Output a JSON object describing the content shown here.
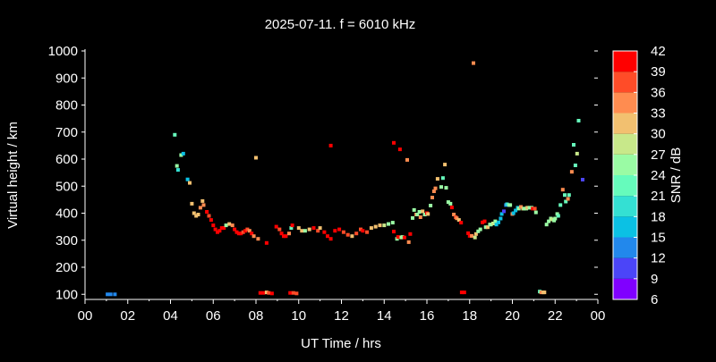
{
  "chart_data": {
    "type": "scatter",
    "title": "2025-07-11. f = 6010 kHz",
    "xlabel": "UT Time / hrs",
    "ylabel": "Virtual height / km",
    "xlim": [
      0,
      24
    ],
    "ylim": [
      80,
      1000
    ],
    "xticks": [
      "00",
      "02",
      "04",
      "06",
      "08",
      "10",
      "12",
      "14",
      "16",
      "18",
      "20",
      "22",
      "00"
    ],
    "yticks": [
      100,
      200,
      300,
      400,
      500,
      600,
      700,
      800,
      900,
      1000
    ],
    "colorbar": {
      "label": "SNR / dB",
      "ticks": [
        6,
        9,
        12,
        15,
        18,
        21,
        24,
        27,
        30,
        33,
        36,
        39,
        42
      ],
      "colors": [
        "#8000ff",
        "#4b45f8",
        "#2288ec",
        "#0bc1e4",
        "#34e0d3",
        "#66fbbc",
        "#9afba4",
        "#c8e88a",
        "#f2c070",
        "#ff8c50",
        "#ff4c28",
        "#ff0000"
      ]
    },
    "grid": false,
    "points": [
      [
        1.05,
        100,
        14
      ],
      [
        1.2,
        100,
        14
      ],
      [
        1.4,
        100,
        14
      ],
      [
        4.2,
        690,
        23
      ],
      [
        4.3,
        575,
        26
      ],
      [
        4.35,
        560,
        20
      ],
      [
        4.5,
        615,
        26
      ],
      [
        4.6,
        620,
        17
      ],
      [
        4.8,
        525,
        17
      ],
      [
        4.9,
        512,
        32
      ],
      [
        5.0,
        435,
        32
      ],
      [
        5.1,
        400,
        32
      ],
      [
        5.2,
        390,
        32
      ],
      [
        5.3,
        395,
        32
      ],
      [
        5.4,
        420,
        35
      ],
      [
        5.5,
        445,
        32
      ],
      [
        5.55,
        430,
        35
      ],
      [
        5.7,
        405,
        41
      ],
      [
        5.8,
        390,
        38
      ],
      [
        5.9,
        375,
        41
      ],
      [
        6.0,
        355,
        41
      ],
      [
        6.1,
        340,
        41
      ],
      [
        6.2,
        330,
        41
      ],
      [
        6.3,
        335,
        41
      ],
      [
        6.4,
        345,
        41
      ],
      [
        6.5,
        345,
        41
      ],
      [
        6.6,
        355,
        26
      ],
      [
        6.75,
        360,
        32
      ],
      [
        6.9,
        355,
        35
      ],
      [
        7.0,
        340,
        41
      ],
      [
        7.1,
        330,
        41
      ],
      [
        7.2,
        325,
        41
      ],
      [
        7.3,
        325,
        41
      ],
      [
        7.4,
        330,
        38
      ],
      [
        7.5,
        335,
        41
      ],
      [
        7.6,
        340,
        38
      ],
      [
        7.7,
        335,
        35
      ],
      [
        7.8,
        325,
        41
      ],
      [
        7.9,
        315,
        35
      ],
      [
        8.1,
        305,
        35
      ],
      [
        8.5,
        290,
        41
      ],
      [
        8.0,
        605,
        32
      ],
      [
        8.2,
        105,
        41
      ],
      [
        8.35,
        105,
        41
      ],
      [
        8.5,
        107,
        32
      ],
      [
        8.6,
        105,
        38
      ],
      [
        8.75,
        103,
        41
      ],
      [
        9.6,
        105,
        41
      ],
      [
        9.75,
        105,
        38
      ],
      [
        9.9,
        103,
        38
      ],
      [
        8.95,
        350,
        41
      ],
      [
        9.1,
        340,
        38
      ],
      [
        9.2,
        325,
        41
      ],
      [
        9.3,
        315,
        41
      ],
      [
        9.4,
        315,
        41
      ],
      [
        9.55,
        325,
        35
      ],
      [
        9.65,
        345,
        23
      ],
      [
        9.7,
        355,
        41
      ],
      [
        10.0,
        345,
        32
      ],
      [
        10.15,
        335,
        32
      ],
      [
        10.3,
        335,
        26
      ],
      [
        10.5,
        340,
        32
      ],
      [
        10.7,
        345,
        41
      ],
      [
        10.9,
        335,
        38
      ],
      [
        11.0,
        345,
        32
      ],
      [
        11.2,
        330,
        41
      ],
      [
        11.35,
        315,
        41
      ],
      [
        11.5,
        305,
        41
      ],
      [
        11.7,
        335,
        41
      ],
      [
        11.9,
        340,
        41
      ],
      [
        11.5,
        650,
        41
      ],
      [
        12.1,
        330,
        38
      ],
      [
        12.3,
        320,
        38
      ],
      [
        12.5,
        315,
        32
      ],
      [
        12.7,
        325,
        38
      ],
      [
        12.9,
        340,
        38
      ],
      [
        13.0,
        335,
        41
      ],
      [
        13.2,
        330,
        38
      ],
      [
        13.4,
        345,
        32
      ],
      [
        13.6,
        350,
        32
      ],
      [
        13.8,
        355,
        32
      ],
      [
        14.0,
        355,
        29
      ],
      [
        14.2,
        360,
        26
      ],
      [
        14.4,
        365,
        26
      ],
      [
        14.45,
        660,
        41
      ],
      [
        14.74,
        636,
        41
      ],
      [
        15.08,
        597,
        35
      ],
      [
        14.45,
        332,
        41
      ],
      [
        14.6,
        305,
        26
      ],
      [
        14.65,
        312,
        41
      ],
      [
        14.8,
        310,
        29
      ],
      [
        14.85,
        312,
        26
      ],
      [
        14.95,
        310,
        41
      ],
      [
        15.15,
        293,
        35
      ],
      [
        15.22,
        323,
        41
      ],
      [
        15.33,
        382,
        26
      ],
      [
        15.4,
        412,
        26
      ],
      [
        15.5,
        395,
        35
      ],
      [
        15.55,
        395,
        26
      ],
      [
        15.65,
        405,
        26
      ],
      [
        15.7,
        385,
        35
      ],
      [
        15.8,
        407,
        32
      ],
      [
        15.9,
        395,
        26
      ],
      [
        16.0,
        400,
        41
      ],
      [
        16.05,
        397,
        32
      ],
      [
        16.17,
        428,
        26
      ],
      [
        16.25,
        458,
        35
      ],
      [
        16.33,
        481,
        35
      ],
      [
        16.4,
        492,
        35
      ],
      [
        16.5,
        527,
        32
      ],
      [
        16.67,
        497,
        26
      ],
      [
        16.75,
        530,
        23
      ],
      [
        16.84,
        580,
        32
      ],
      [
        16.9,
        494,
        26
      ],
      [
        17.0,
        441,
        26
      ],
      [
        17.1,
        435,
        26
      ],
      [
        17.17,
        421,
        41
      ],
      [
        17.26,
        395,
        35
      ],
      [
        17.35,
        385,
        38
      ],
      [
        17.4,
        381,
        35
      ],
      [
        17.5,
        375,
        32
      ],
      [
        17.6,
        365,
        41
      ],
      [
        17.63,
        107,
        41
      ],
      [
        17.75,
        107,
        41
      ],
      [
        18.18,
        955,
        35
      ],
      [
        17.93,
        326,
        41
      ],
      [
        18.0,
        316,
        41
      ],
      [
        18.1,
        316,
        35
      ],
      [
        18.25,
        310,
        29
      ],
      [
        18.3,
        323,
        32
      ],
      [
        18.4,
        333,
        26
      ],
      [
        18.5,
        340,
        26
      ],
      [
        18.6,
        366,
        41
      ],
      [
        18.7,
        370,
        41
      ],
      [
        18.75,
        348,
        26
      ],
      [
        18.85,
        348,
        32
      ],
      [
        18.95,
        358,
        26
      ],
      [
        19.0,
        358,
        26
      ],
      [
        19.1,
        362,
        29
      ],
      [
        19.2,
        370,
        26
      ],
      [
        19.25,
        358,
        17
      ],
      [
        19.35,
        366,
        17
      ],
      [
        19.45,
        380,
        17
      ],
      [
        19.5,
        397,
        17
      ],
      [
        19.6,
        407,
        11
      ],
      [
        19.7,
        430,
        14
      ],
      [
        19.75,
        433,
        20
      ],
      [
        19.85,
        430,
        26
      ],
      [
        19.9,
        430,
        26
      ],
      [
        20.0,
        397,
        35
      ],
      [
        20.05,
        400,
        17
      ],
      [
        20.15,
        410,
        17
      ],
      [
        20.25,
        420,
        17
      ],
      [
        20.3,
        417,
        26
      ],
      [
        20.4,
        423,
        35
      ],
      [
        20.5,
        417,
        32
      ],
      [
        20.55,
        417,
        26
      ],
      [
        20.65,
        417,
        26
      ],
      [
        20.7,
        420,
        32
      ],
      [
        20.8,
        420,
        26
      ],
      [
        20.9,
        420,
        26
      ],
      [
        20.95,
        417,
        41
      ],
      [
        21.05,
        417,
        38
      ],
      [
        21.1,
        403,
        26
      ],
      [
        21.28,
        110,
        23
      ],
      [
        21.35,
        107,
        35
      ],
      [
        21.45,
        107,
        32
      ],
      [
        21.5,
        107,
        32
      ],
      [
        21.6,
        358,
        26
      ],
      [
        21.7,
        370,
        26
      ],
      [
        21.8,
        380,
        26
      ],
      [
        21.85,
        377,
        29
      ],
      [
        21.95,
        373,
        26
      ],
      [
        22.0,
        380,
        26
      ],
      [
        22.1,
        397,
        26
      ],
      [
        22.15,
        390,
        23
      ],
      [
        22.25,
        430,
        23
      ],
      [
        22.36,
        487,
        35
      ],
      [
        22.45,
        467,
        23
      ],
      [
        22.5,
        443,
        23
      ],
      [
        22.6,
        453,
        35
      ],
      [
        22.65,
        467,
        23
      ],
      [
        22.78,
        553,
        35
      ],
      [
        22.87,
        653,
        23
      ],
      [
        22.95,
        577,
        23
      ],
      [
        23.03,
        620,
        29
      ],
      [
        23.1,
        742,
        23
      ],
      [
        23.29,
        524,
        11
      ]
    ]
  }
}
